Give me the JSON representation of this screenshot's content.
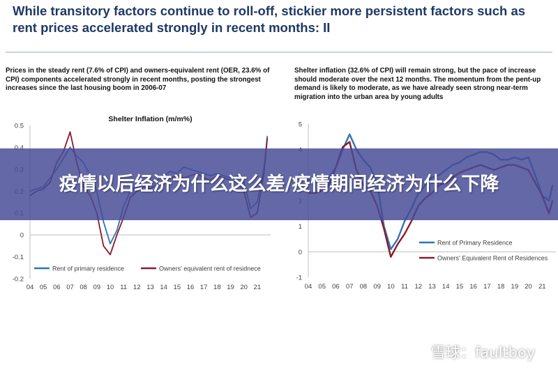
{
  "page": {
    "title": "While transitory factors continue to roll-off, stickier more persistent factors such as rent prices accelerated strongly in recent months: II"
  },
  "left_panel": {
    "note": "Prices in the steady rent (7.6% of CPI) and owners-equivalent rent (OER, 23.6% of CPI) components accelerated strongly in recent months, posting the strongest increases since the last housing boom in 2006-07"
  },
  "right_panel": {
    "note": "Shelter inflation (32.6% of CPI) will remain strong, but the pace of increase should moderate over the next 12 months. The momentum from the pent-up demand is likely to moderate, as we have already seen strong near-term migration into the urban area by young adults"
  },
  "banner": {
    "text": "疫情以后经济为什么这么差/疫情期间经济为什么下降"
  },
  "watermark": {
    "text": "雪球：faultboy"
  },
  "colors": {
    "title": "#1f3864",
    "series_blue": "#2e75b6",
    "series_red": "#8b1a2b",
    "banner": "#464b96"
  },
  "chart_data": [
    {
      "type": "line",
      "title": "Shelter Inflation (m/m%)",
      "xlabel": "",
      "ylabel": "",
      "xlim": [
        2004,
        2022
      ],
      "xticks": [
        "04",
        "05",
        "06",
        "07",
        "08",
        "09",
        "10",
        "11",
        "12",
        "13",
        "14",
        "15",
        "16",
        "17",
        "18",
        "19",
        "20",
        "21"
      ],
      "ylim": [
        -0.2,
        0.5
      ],
      "yticks": [
        "-0.2",
        "-0.1",
        "0",
        "0.1",
        "0.2",
        "0.3",
        "0.4",
        "0.5"
      ],
      "grid": false,
      "legend": "bottom",
      "series": [
        {
          "name": "Rent of primary residence",
          "color": "#2e75b6",
          "x": [
            2004.0,
            2004.5,
            2005.0,
            2005.5,
            2006.0,
            2006.5,
            2007.0,
            2007.5,
            2008.0,
            2008.5,
            2009.0,
            2009.5,
            2010.0,
            2010.5,
            2011.0,
            2011.5,
            2012.0,
            2012.5,
            2013.0,
            2013.5,
            2014.0,
            2014.5,
            2015.0,
            2015.5,
            2016.0,
            2016.5,
            2017.0,
            2017.5,
            2018.0,
            2018.5,
            2019.0,
            2019.5,
            2020.0,
            2020.5,
            2021.0,
            2021.5,
            2021.75
          ],
          "y": [
            0.2,
            0.21,
            0.22,
            0.26,
            0.3,
            0.35,
            0.4,
            0.36,
            0.33,
            0.27,
            0.2,
            0.06,
            -0.04,
            0.02,
            0.13,
            0.2,
            0.22,
            0.25,
            0.24,
            0.25,
            0.27,
            0.29,
            0.28,
            0.31,
            0.3,
            0.29,
            0.28,
            0.27,
            0.28,
            0.27,
            0.26,
            0.27,
            0.24,
            0.12,
            0.15,
            0.3,
            0.45
          ]
        },
        {
          "name": "Owners' equivalent rent of residnece",
          "color": "#8b1a2b",
          "x": [
            2004.0,
            2004.5,
            2005.0,
            2005.5,
            2006.0,
            2006.5,
            2007.0,
            2007.5,
            2008.0,
            2008.5,
            2009.0,
            2009.5,
            2010.0,
            2010.5,
            2011.0,
            2011.5,
            2012.0,
            2012.5,
            2013.0,
            2013.5,
            2014.0,
            2014.5,
            2015.0,
            2015.5,
            2016.0,
            2016.5,
            2017.0,
            2017.5,
            2018.0,
            2018.5,
            2019.0,
            2019.5,
            2020.0,
            2020.5,
            2021.0,
            2021.5,
            2021.75
          ],
          "y": [
            0.18,
            0.2,
            0.21,
            0.24,
            0.33,
            0.38,
            0.47,
            0.33,
            0.22,
            0.18,
            0.1,
            -0.05,
            -0.09,
            0.0,
            0.08,
            0.17,
            0.2,
            0.22,
            0.21,
            0.23,
            0.25,
            0.26,
            0.27,
            0.26,
            0.27,
            0.28,
            0.26,
            0.25,
            0.27,
            0.26,
            0.25,
            0.24,
            0.2,
            0.08,
            0.1,
            0.28,
            0.44
          ]
        }
      ]
    },
    {
      "type": "line",
      "title": "",
      "xlabel": "",
      "ylabel": "",
      "xlim": [
        2004,
        2022
      ],
      "xticks": [
        "04",
        "05",
        "06",
        "07",
        "08",
        "09",
        "10",
        "11",
        "12",
        "13",
        "14",
        "15",
        "16",
        "17",
        "18",
        "19",
        "20",
        "21"
      ],
      "ylim": [
        -1,
        5
      ],
      "yticks": [
        "-1",
        "0",
        "1",
        "2",
        "3",
        "4",
        "5"
      ],
      "grid": false,
      "legend": "bottom-right",
      "series": [
        {
          "name": "Rent of Primary Residence",
          "color": "#2e75b6",
          "x": [
            2004.0,
            2004.5,
            2005.0,
            2005.5,
            2006.0,
            2006.5,
            2007.0,
            2007.5,
            2008.0,
            2008.5,
            2009.0,
            2009.5,
            2010.0,
            2010.5,
            2011.0,
            2011.5,
            2012.0,
            2012.5,
            2013.0,
            2013.5,
            2014.0,
            2014.5,
            2015.0,
            2015.5,
            2016.0,
            2016.5,
            2017.0,
            2017.5,
            2018.0,
            2018.5,
            2019.0,
            2019.5,
            2020.0,
            2020.5,
            2021.0,
            2021.5,
            2021.75
          ],
          "y": [
            2.8,
            2.75,
            2.7,
            2.9,
            3.3,
            4.0,
            4.6,
            4.0,
            3.6,
            3.3,
            2.7,
            1.0,
            0.1,
            0.5,
            1.2,
            1.7,
            2.3,
            2.6,
            2.9,
            3.0,
            3.2,
            3.4,
            3.5,
            3.7,
            3.8,
            3.9,
            3.9,
            3.8,
            3.6,
            3.6,
            3.7,
            3.6,
            3.7,
            3.0,
            2.2,
            2.0,
            2.6
          ]
        },
        {
          "name": "Owners' Equivalent Rent of Residences",
          "color": "#8b1a2b",
          "x": [
            2004.0,
            2004.5,
            2005.0,
            2005.5,
            2006.0,
            2006.5,
            2007.0,
            2007.5,
            2008.0,
            2008.5,
            2009.0,
            2009.5,
            2010.0,
            2010.5,
            2011.0,
            2011.5,
            2012.0,
            2012.5,
            2013.0,
            2013.5,
            2014.0,
            2014.5,
            2015.0,
            2015.5,
            2016.0,
            2016.5,
            2017.0,
            2017.5,
            2018.0,
            2018.5,
            2019.0,
            2019.5,
            2020.0,
            2020.5,
            2021.0,
            2021.5,
            2021.75
          ],
          "y": [
            2.3,
            2.3,
            2.4,
            2.6,
            3.3,
            4.1,
            4.3,
            3.2,
            2.6,
            2.4,
            1.8,
            0.9,
            -0.2,
            0.3,
            0.7,
            1.2,
            1.8,
            2.1,
            2.3,
            2.6,
            2.7,
            2.9,
            3.1,
            3.2,
            3.3,
            3.4,
            3.3,
            3.2,
            3.3,
            3.4,
            3.4,
            3.3,
            3.2,
            2.7,
            2.2,
            1.5,
            2.0
          ]
        }
      ]
    }
  ]
}
